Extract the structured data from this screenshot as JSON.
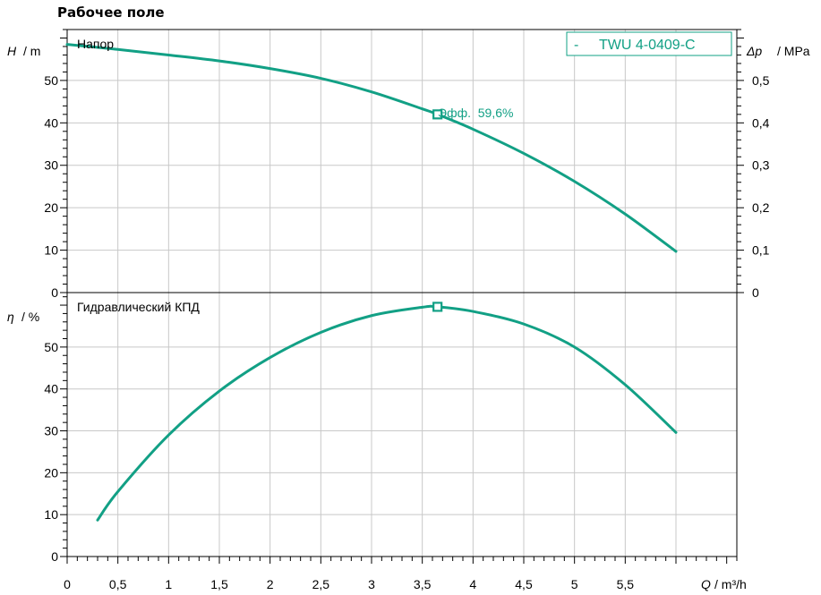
{
  "page": {
    "title": "Рабочее поле"
  },
  "colors": {
    "accent": "#12a085",
    "grid": "#c8c8c8",
    "axis": "#000000"
  },
  "chart_data": [
    {
      "type": "line",
      "panel": "head",
      "title": "Напор",
      "y_symbol": "H",
      "y_unit": "/ m",
      "y2_symbol": "Δp",
      "y2_unit": "/ MPa",
      "ylim": [
        0,
        62
      ],
      "y2lim": [
        0,
        0.62
      ],
      "yticks": [
        0,
        10,
        20,
        30,
        40,
        50
      ],
      "y2ticks": [
        0,
        0.1,
        0.2,
        0.3,
        0.4,
        0.5
      ],
      "y2tick_labels": [
        "0",
        "0,1",
        "0,2",
        "0,3",
        "0,4",
        "0,5"
      ],
      "legend": {
        "prefix": "-",
        "label": "TWU 4-0409-C",
        "position": "top-right"
      },
      "series": [
        {
          "name": "TWU 4-0409-C",
          "x": [
            0,
            0.5,
            1,
            1.5,
            2,
            2.5,
            3,
            3.5,
            3.65,
            4,
            4.5,
            5,
            5.5,
            6
          ],
          "values": [
            58.5,
            57.3,
            56.0,
            54.6,
            52.8,
            50.5,
            47.3,
            43.3,
            42.0,
            38.5,
            32.8,
            26.2,
            18.5,
            9.7
          ]
        }
      ],
      "marker": {
        "x": 3.65,
        "y": 42.0,
        "label": "Эфф.  59,6%"
      }
    },
    {
      "type": "line",
      "panel": "efficiency",
      "title": "Гидравлический КПД",
      "y_symbol": "η",
      "y_unit": "/ %",
      "ylim": [
        0,
        63
      ],
      "yticks": [
        0,
        10,
        20,
        30,
        40,
        50
      ],
      "series": [
        {
          "name": "TWU 4-0409-C",
          "x": [
            0.3,
            0.5,
            1,
            1.5,
            2,
            2.5,
            3,
            3.5,
            3.65,
            4,
            4.5,
            5,
            5.5,
            6
          ],
          "values": [
            8.7,
            15.5,
            29.0,
            39.5,
            47.5,
            53.5,
            57.5,
            59.5,
            59.6,
            58.5,
            55.5,
            50.0,
            41.0,
            29.6
          ]
        }
      ],
      "marker": {
        "x": 3.65,
        "y": 59.6
      }
    }
  ],
  "x_axis": {
    "symbol": "Q",
    "unit": "/ m³/h",
    "xlim": [
      0,
      6.6
    ],
    "ticks": [
      0,
      0.5,
      1,
      1.5,
      2,
      2.5,
      3,
      3.5,
      4,
      4.5,
      5,
      5.5,
      6
    ],
    "tick_labels": [
      "0",
      "0,5",
      "1",
      "1,5",
      "2",
      "2,5",
      "3",
      "3,5",
      "4",
      "4,5",
      "5",
      "5,5",
      ""
    ]
  }
}
